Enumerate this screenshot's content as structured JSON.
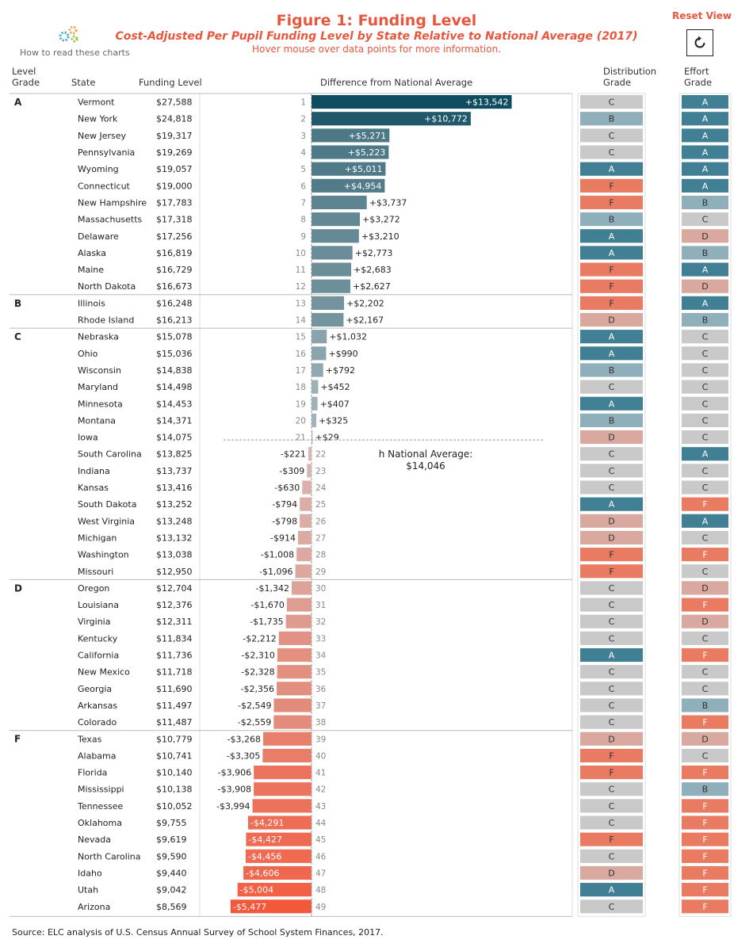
{
  "header": {
    "title": "Figure 1: Funding Level",
    "subtitle": "Cost-Adjusted Per Pupil Funding Level by State Relative to National Average (2017)",
    "hover_note": "Hover mouse over data points for more information.",
    "how_to": "How to read these charts",
    "reset_label": "Reset View"
  },
  "columns": {
    "level_grade_line1": "Level",
    "level_grade_line2": "Grade",
    "state": "State",
    "funding_level": "Funding Level",
    "difference": "Difference from National Average",
    "distribution_line1": "Distribution",
    "distribution_line2": "Grade",
    "effort_line1": "Effort",
    "effort_line2": "Grade"
  },
  "national_average": {
    "label": "h National Average:",
    "value": "$14,046"
  },
  "source": "Source: ELC analysis of U.S. Census Annual Survey of School System Finances, 2017.",
  "grade_colors": {
    "A": "#417f94",
    "B": "#8fafba",
    "C": "#c9c9c9",
    "D": "#d9a89f",
    "F": "#ea7b63"
  },
  "chart_data": {
    "type": "bar",
    "orientation": "horizontal",
    "title": "Figure 1: Funding Level",
    "xlabel": "Difference from National Average",
    "baseline": 14046,
    "group_grades": [
      "A",
      "B",
      "C",
      "D",
      "F"
    ],
    "rows": [
      {
        "level": "A",
        "state": "Vermont",
        "funding": "$27,588",
        "diff": 13542,
        "label": "+$13,542",
        "rank": 1,
        "dist": "C",
        "effort": "A"
      },
      {
        "level": "A",
        "state": "New York",
        "funding": "$24,818",
        "diff": 10772,
        "label": "+$10,772",
        "rank": 2,
        "dist": "B",
        "effort": "A"
      },
      {
        "level": "A",
        "state": "New Jersey",
        "funding": "$19,317",
        "diff": 5271,
        "label": "+$5,271",
        "rank": 3,
        "dist": "C",
        "effort": "A"
      },
      {
        "level": "A",
        "state": "Pennsylvania",
        "funding": "$19,269",
        "diff": 5223,
        "label": "+$5,223",
        "rank": 4,
        "dist": "C",
        "effort": "A"
      },
      {
        "level": "A",
        "state": "Wyoming",
        "funding": "$19,057",
        "diff": 5011,
        "label": "+$5,011",
        "rank": 5,
        "dist": "A",
        "effort": "A"
      },
      {
        "level": "A",
        "state": "Connecticut",
        "funding": "$19,000",
        "diff": 4954,
        "label": "+$4,954",
        "rank": 6,
        "dist": "F",
        "effort": "A"
      },
      {
        "level": "A",
        "state": "New Hampshire",
        "funding": "$17,783",
        "diff": 3737,
        "label": "+$3,737",
        "rank": 7,
        "dist": "F",
        "effort": "B"
      },
      {
        "level": "A",
        "state": "Massachusetts",
        "funding": "$17,318",
        "diff": 3272,
        "label": "+$3,272",
        "rank": 8,
        "dist": "B",
        "effort": "C"
      },
      {
        "level": "A",
        "state": "Delaware",
        "funding": "$17,256",
        "diff": 3210,
        "label": "+$3,210",
        "rank": 9,
        "dist": "A",
        "effort": "D"
      },
      {
        "level": "A",
        "state": "Alaska",
        "funding": "$16,819",
        "diff": 2773,
        "label": "+$2,773",
        "rank": 10,
        "dist": "A",
        "effort": "B"
      },
      {
        "level": "A",
        "state": "Maine",
        "funding": "$16,729",
        "diff": 2683,
        "label": "+$2,683",
        "rank": 11,
        "dist": "F",
        "effort": "A"
      },
      {
        "level": "A",
        "state": "North Dakota",
        "funding": "$16,673",
        "diff": 2627,
        "label": "+$2,627",
        "rank": 12,
        "dist": "F",
        "effort": "D"
      },
      {
        "level": "B",
        "state": "Illinois",
        "funding": "$16,248",
        "diff": 2202,
        "label": "+$2,202",
        "rank": 13,
        "dist": "F",
        "effort": "A"
      },
      {
        "level": "B",
        "state": "Rhode Island",
        "funding": "$16,213",
        "diff": 2167,
        "label": "+$2,167",
        "rank": 14,
        "dist": "D",
        "effort": "B"
      },
      {
        "level": "C",
        "state": "Nebraska",
        "funding": "$15,078",
        "diff": 1032,
        "label": "+$1,032",
        "rank": 15,
        "dist": "A",
        "effort": "C"
      },
      {
        "level": "C",
        "state": "Ohio",
        "funding": "$15,036",
        "diff": 990,
        "label": "+$990",
        "rank": 16,
        "dist": "A",
        "effort": "C"
      },
      {
        "level": "C",
        "state": "Wisconsin",
        "funding": "$14,838",
        "diff": 792,
        "label": "+$792",
        "rank": 17,
        "dist": "B",
        "effort": "C"
      },
      {
        "level": "C",
        "state": "Maryland",
        "funding": "$14,498",
        "diff": 452,
        "label": "+$452",
        "rank": 18,
        "dist": "C",
        "effort": "C"
      },
      {
        "level": "C",
        "state": "Minnesota",
        "funding": "$14,453",
        "diff": 407,
        "label": "+$407",
        "rank": 19,
        "dist": "A",
        "effort": "C"
      },
      {
        "level": "C",
        "state": "Montana",
        "funding": "$14,371",
        "diff": 325,
        "label": "+$325",
        "rank": 20,
        "dist": "B",
        "effort": "C"
      },
      {
        "level": "C",
        "state": "Iowa",
        "funding": "$14,075",
        "diff": 29,
        "label": "+$29",
        "rank": 21,
        "dist": "D",
        "effort": "C"
      },
      {
        "level": "C",
        "state": "South Carolina",
        "funding": "$13,825",
        "diff": -221,
        "label": "-$221",
        "rank": 22,
        "dist": "C",
        "effort": "A"
      },
      {
        "level": "C",
        "state": "Indiana",
        "funding": "$13,737",
        "diff": -309,
        "label": "-$309",
        "rank": 23,
        "dist": "C",
        "effort": "C"
      },
      {
        "level": "C",
        "state": "Kansas",
        "funding": "$13,416",
        "diff": -630,
        "label": "-$630",
        "rank": 24,
        "dist": "C",
        "effort": "C"
      },
      {
        "level": "C",
        "state": "South Dakota",
        "funding": "$13,252",
        "diff": -794,
        "label": "-$794",
        "rank": 25,
        "dist": "A",
        "effort": "F"
      },
      {
        "level": "C",
        "state": "West Virginia",
        "funding": "$13,248",
        "diff": -798,
        "label": "-$798",
        "rank": 26,
        "dist": "D",
        "effort": "A"
      },
      {
        "level": "C",
        "state": "Michigan",
        "funding": "$13,132",
        "diff": -914,
        "label": "-$914",
        "rank": 27,
        "dist": "D",
        "effort": "C"
      },
      {
        "level": "C",
        "state": "Washington",
        "funding": "$13,038",
        "diff": -1008,
        "label": "-$1,008",
        "rank": 28,
        "dist": "F",
        "effort": "F"
      },
      {
        "level": "C",
        "state": "Missouri",
        "funding": "$12,950",
        "diff": -1096,
        "label": "-$1,096",
        "rank": 29,
        "dist": "F",
        "effort": "C"
      },
      {
        "level": "D",
        "state": "Oregon",
        "funding": "$12,704",
        "diff": -1342,
        "label": "-$1,342",
        "rank": 30,
        "dist": "C",
        "effort": "D"
      },
      {
        "level": "D",
        "state": "Louisiana",
        "funding": "$12,376",
        "diff": -1670,
        "label": "-$1,670",
        "rank": 31,
        "dist": "C",
        "effort": "F"
      },
      {
        "level": "D",
        "state": "Virginia",
        "funding": "$12,311",
        "diff": -1735,
        "label": "-$1,735",
        "rank": 32,
        "dist": "C",
        "effort": "D"
      },
      {
        "level": "D",
        "state": "Kentucky",
        "funding": "$11,834",
        "diff": -2212,
        "label": "-$2,212",
        "rank": 33,
        "dist": "C",
        "effort": "C"
      },
      {
        "level": "D",
        "state": "California",
        "funding": "$11,736",
        "diff": -2310,
        "label": "-$2,310",
        "rank": 34,
        "dist": "A",
        "effort": "F"
      },
      {
        "level": "D",
        "state": "New Mexico",
        "funding": "$11,718",
        "diff": -2328,
        "label": "-$2,328",
        "rank": 35,
        "dist": "C",
        "effort": "C"
      },
      {
        "level": "D",
        "state": "Georgia",
        "funding": "$11,690",
        "diff": -2356,
        "label": "-$2,356",
        "rank": 36,
        "dist": "C",
        "effort": "C"
      },
      {
        "level": "D",
        "state": "Arkansas",
        "funding": "$11,497",
        "diff": -2549,
        "label": "-$2,549",
        "rank": 37,
        "dist": "C",
        "effort": "B"
      },
      {
        "level": "D",
        "state": "Colorado",
        "funding": "$11,487",
        "diff": -2559,
        "label": "-$2,559",
        "rank": 38,
        "dist": "C",
        "effort": "F"
      },
      {
        "level": "F",
        "state": "Texas",
        "funding": "$10,779",
        "diff": -3268,
        "label": "-$3,268",
        "rank": 39,
        "dist": "D",
        "effort": "D"
      },
      {
        "level": "F",
        "state": "Alabama",
        "funding": "$10,741",
        "diff": -3305,
        "label": "-$3,305",
        "rank": 40,
        "dist": "F",
        "effort": "C"
      },
      {
        "level": "F",
        "state": "Florida",
        "funding": "$10,140",
        "diff": -3906,
        "label": "-$3,906",
        "rank": 41,
        "dist": "F",
        "effort": "F"
      },
      {
        "level": "F",
        "state": "Mississippi",
        "funding": "$10,138",
        "diff": -3908,
        "label": "-$3,908",
        "rank": 42,
        "dist": "C",
        "effort": "B"
      },
      {
        "level": "F",
        "state": "Tennessee",
        "funding": "$10,052",
        "diff": -3994,
        "label": "-$3,994",
        "rank": 43,
        "dist": "C",
        "effort": "F"
      },
      {
        "level": "F",
        "state": "Oklahoma",
        "funding": "$9,755",
        "diff": -4291,
        "label": "-$4,291",
        "rank": 44,
        "dist": "C",
        "effort": "F"
      },
      {
        "level": "F",
        "state": "Nevada",
        "funding": "$9,619",
        "diff": -4427,
        "label": "-$4,427",
        "rank": 45,
        "dist": "F",
        "effort": "F"
      },
      {
        "level": "F",
        "state": "North Carolina",
        "funding": "$9,590",
        "diff": -4456,
        "label": "-$4,456",
        "rank": 46,
        "dist": "C",
        "effort": "F"
      },
      {
        "level": "F",
        "state": "Idaho",
        "funding": "$9,440",
        "diff": -4606,
        "label": "-$4,606",
        "rank": 47,
        "dist": "D",
        "effort": "F"
      },
      {
        "level": "F",
        "state": "Utah",
        "funding": "$9,042",
        "diff": -5004,
        "label": "-$5,004",
        "rank": 48,
        "dist": "A",
        "effort": "F"
      },
      {
        "level": "F",
        "state": "Arizona",
        "funding": "$8,569",
        "diff": -5477,
        "label": "-$5,477",
        "rank": 49,
        "dist": "C",
        "effort": "F"
      }
    ]
  }
}
